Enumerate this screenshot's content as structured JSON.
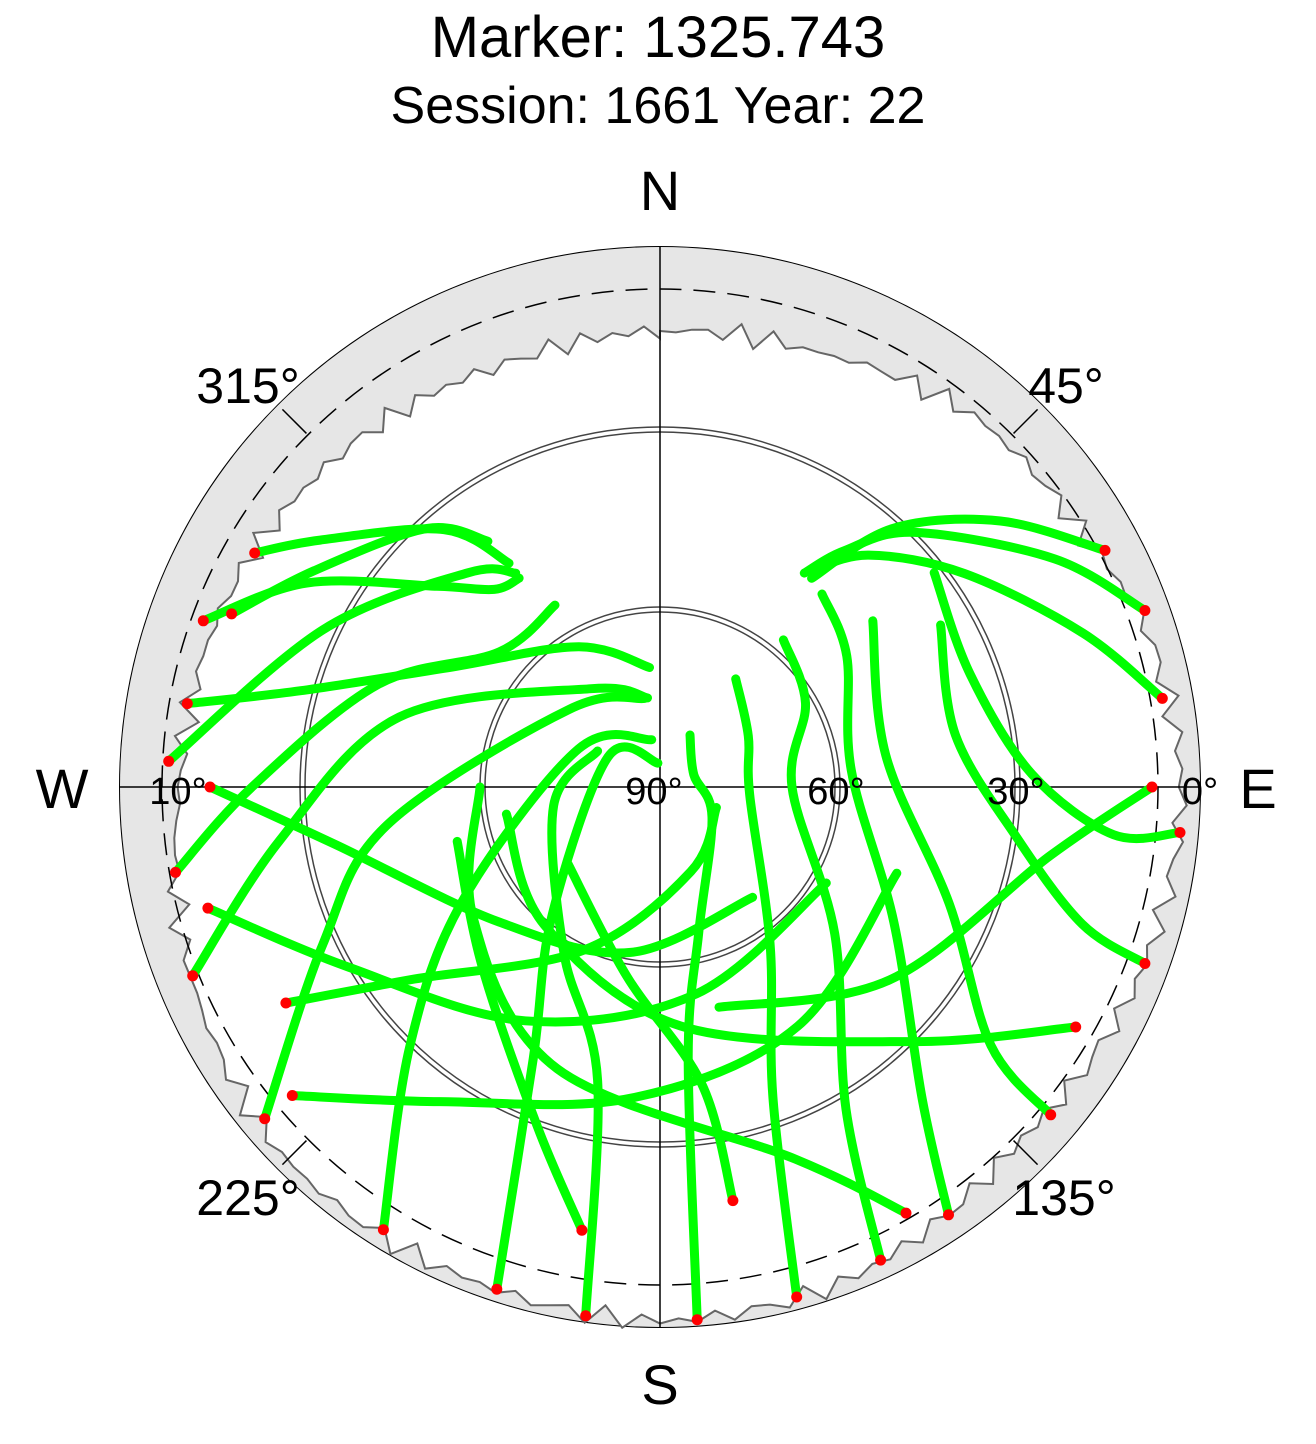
{
  "title": "Marker: 1325.743",
  "subtitle": "Session: 1661 Year: 22",
  "chart_data": {
    "type": "scatter",
    "projection": "polar-skyplot",
    "title": "Marker: 1325.743",
    "subtitle": "Session: 1661 Year: 22",
    "radial_axis": {
      "quantity": "elevation",
      "min": 0,
      "max": 90,
      "tick_labels": [
        "90°",
        "60°",
        "30°",
        "10°",
        "0°"
      ]
    },
    "angular_axis": {
      "quantity": "azimuth",
      "direction": "clockwise-from-north",
      "tick_labels": [
        "45°",
        "135°",
        "225°",
        "315°"
      ]
    },
    "cardinal_labels": {
      "north": "N",
      "east": "E",
      "south": "S",
      "west": "W"
    },
    "concentric_circles_elevation": [
      60,
      30
    ],
    "dashed_circle_elevation": 10,
    "colors": {
      "track": "#00ff00",
      "track_end": "#ff0000",
      "mask_outer": "#c8c8c8",
      "mask_inner": "#e6e6e6"
    },
    "horizon_mask": [
      [
        0,
        14
      ],
      [
        20,
        13
      ],
      [
        40,
        9
      ],
      [
        60,
        8
      ],
      [
        70,
        5
      ],
      [
        90,
        3
      ],
      [
        110,
        4
      ],
      [
        135,
        6
      ],
      [
        160,
        2
      ],
      [
        180,
        1
      ],
      [
        200,
        2
      ],
      [
        225,
        2
      ],
      [
        250,
        6
      ],
      [
        270,
        10
      ],
      [
        290,
        11
      ],
      [
        315,
        13
      ],
      [
        340,
        15
      ],
      [
        360,
        14
      ]
    ],
    "series": [
      {
        "track": [
          [
            290,
            9
          ],
          [
            300,
            22
          ],
          [
            312,
            40
          ],
          [
            320,
            47
          ],
          [
            326,
            48
          ]
        ]
      },
      {
        "track": [
          [
            273,
            8
          ],
          [
            295,
            28
          ],
          [
            318,
            42
          ],
          [
            326,
            47
          ]
        ]
      },
      {
        "track": [
          [
            292,
            13
          ],
          [
            302,
            22
          ],
          [
            318,
            32
          ],
          [
            325,
            40
          ]
        ]
      },
      {
        "track": [
          [
            300,
            12
          ],
          [
            306,
            20
          ],
          [
            320,
            34
          ],
          [
            326,
            45
          ]
        ]
      },
      {
        "track": [
          [
            260,
            8
          ],
          [
            270,
            22
          ],
          [
            290,
            40
          ],
          [
            310,
            55
          ],
          [
            330,
            55
          ]
        ]
      },
      {
        "track": [
          [
            248,
            6
          ],
          [
            262,
            26
          ],
          [
            285,
            45
          ],
          [
            325,
            70
          ],
          [
            352,
            75
          ]
        ]
      },
      {
        "track": [
          [
            230,
            4
          ],
          [
            245,
            28
          ],
          [
            262,
            44
          ],
          [
            310,
            70
          ],
          [
            350,
            75
          ]
        ]
      },
      {
        "track": [
          [
            212,
            3
          ],
          [
            224,
            30
          ],
          [
            240,
            52
          ],
          [
            295,
            75
          ],
          [
            350,
            82
          ]
        ]
      },
      {
        "track": [
          [
            198,
            2
          ],
          [
            205,
            40
          ],
          [
            220,
            62
          ],
          [
            300,
            80
          ],
          [
            355,
            86
          ]
        ]
      },
      {
        "track": [
          [
            188,
            1
          ],
          [
            192,
            40
          ],
          [
            210,
            58
          ],
          [
            260,
            72
          ],
          [
            300,
            78
          ]
        ]
      },
      {
        "track": [
          [
            176,
            1
          ],
          [
            174,
            45
          ],
          [
            165,
            65
          ],
          [
            120,
            80
          ],
          [
            70,
            84
          ],
          [
            30,
            80
          ]
        ]
      },
      {
        "track": [
          [
            165,
            2
          ],
          [
            160,
            35
          ],
          [
            145,
            58
          ],
          [
            95,
            75
          ],
          [
            60,
            73
          ],
          [
            35,
            68
          ]
        ]
      },
      {
        "track": [
          [
            155,
            3
          ],
          [
            150,
            28
          ],
          [
            130,
            52
          ],
          [
            90,
            68
          ],
          [
            60,
            62
          ],
          [
            40,
            58
          ]
        ]
      },
      {
        "track": [
          [
            146,
            4
          ],
          [
            140,
            22
          ],
          [
            120,
            45
          ],
          [
            85,
            58
          ],
          [
            55,
            52
          ],
          [
            40,
            48
          ]
        ]
      },
      {
        "track": [
          [
            130,
            5
          ],
          [
            128,
            20
          ],
          [
            112,
            38
          ],
          [
            82,
            52
          ],
          [
            52,
            45
          ]
        ]
      },
      {
        "track": [
          [
            110,
            4
          ],
          [
            108,
            16
          ],
          [
            98,
            30
          ],
          [
            80,
            40
          ],
          [
            60,
            36
          ]
        ]
      },
      {
        "track": [
          [
            95,
            3
          ],
          [
            96,
            14
          ],
          [
            88,
            28
          ],
          [
            70,
            35
          ],
          [
            52,
            32
          ]
        ]
      },
      {
        "track": [
          [
            70,
            4
          ],
          [
            60,
            14
          ],
          [
            45,
            30
          ],
          [
            38,
            40
          ],
          [
            34,
            47
          ]
        ]
      },
      {
        "track": [
          [
            62,
            6
          ],
          [
            52,
            18
          ],
          [
            42,
            32
          ],
          [
            36,
            47
          ]
        ]
      },
      {
        "track": [
          [
            80,
            5
          ],
          [
            70,
            15
          ],
          [
            55,
            28
          ],
          [
            42,
            38
          ],
          [
            35,
            46
          ]
        ]
      },
      {
        "track": [
          [
            150,
            8
          ],
          [
            160,
            24
          ],
          [
            200,
            40
          ],
          [
            235,
            52
          ],
          [
            270,
            60
          ]
        ]
      },
      {
        "track": [
          [
            120,
            10
          ],
          [
            135,
            30
          ],
          [
            175,
            50
          ],
          [
            220,
            60
          ],
          [
            260,
            64
          ]
        ]
      },
      {
        "track": [
          [
            230,
            10
          ],
          [
            215,
            26
          ],
          [
            185,
            38
          ],
          [
            150,
            44
          ],
          [
            110,
            48
          ]
        ]
      },
      {
        "track": [
          [
            255,
            12
          ],
          [
            240,
            30
          ],
          [
            210,
            45
          ],
          [
            170,
            55
          ],
          [
            120,
            58
          ]
        ]
      },
      {
        "track": [
          [
            270,
            15
          ],
          [
            260,
            35
          ],
          [
            230,
            55
          ],
          [
            190,
            62
          ],
          [
            140,
            66
          ]
        ]
      },
      {
        "track": [
          [
            280,
            10
          ],
          [
            285,
            28
          ],
          [
            300,
            50
          ],
          [
            330,
            63
          ],
          [
            355,
            70
          ]
        ]
      },
      {
        "track": [
          [
            240,
            18
          ],
          [
            232,
            38
          ],
          [
            205,
            60
          ],
          [
            160,
            75
          ],
          [
            110,
            80
          ]
        ]
      },
      {
        "track": [
          [
            90,
            8
          ],
          [
            100,
            24
          ],
          [
            130,
            40
          ],
          [
            165,
            52
          ]
        ]
      },
      {
        "track": [
          [
            190,
            15
          ],
          [
            200,
            30
          ],
          [
            225,
            48
          ],
          [
            255,
            55
          ]
        ]
      },
      {
        "track": [
          [
            170,
            20
          ],
          [
            172,
            40
          ],
          [
            190,
            58
          ],
          [
            230,
            70
          ]
        ]
      }
    ]
  }
}
